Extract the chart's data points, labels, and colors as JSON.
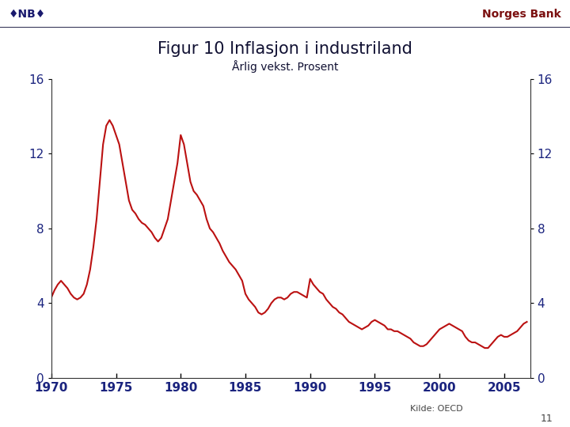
{
  "title": "Figur 10 Inflasjon i industriland",
  "subtitle": "Årlig vekst. Prosent",
  "source": "Kilde: OECD",
  "page_num": "11",
  "line_color": "#bb1111",
  "line_width": 1.5,
  "axis_label_color": "#1a237e",
  "title_color": "#111133",
  "subtitle_color": "#111133",
  "header_logo_color": "#1a1a6e",
  "header_norgesbank_color": "#7b1010",
  "ylim": [
    0,
    16
  ],
  "yticks": [
    0,
    4,
    8,
    12,
    16
  ],
  "xlim_min": 1970.0,
  "xlim_max": 2007.0,
  "xticks": [
    1970,
    1975,
    1980,
    1985,
    1990,
    1995,
    2000,
    2005
  ],
  "years": [
    1970.0,
    1970.25,
    1970.5,
    1970.75,
    1971.0,
    1971.25,
    1971.5,
    1971.75,
    1972.0,
    1972.25,
    1972.5,
    1972.75,
    1973.0,
    1973.25,
    1973.5,
    1973.75,
    1974.0,
    1974.25,
    1974.5,
    1974.75,
    1975.0,
    1975.25,
    1975.5,
    1975.75,
    1976.0,
    1976.25,
    1976.5,
    1976.75,
    1977.0,
    1977.25,
    1977.5,
    1977.75,
    1978.0,
    1978.25,
    1978.5,
    1978.75,
    1979.0,
    1979.25,
    1979.5,
    1979.75,
    1980.0,
    1980.25,
    1980.5,
    1980.75,
    1981.0,
    1981.25,
    1981.5,
    1981.75,
    1982.0,
    1982.25,
    1982.5,
    1982.75,
    1983.0,
    1983.25,
    1983.5,
    1983.75,
    1984.0,
    1984.25,
    1984.5,
    1984.75,
    1985.0,
    1985.25,
    1985.5,
    1985.75,
    1986.0,
    1986.25,
    1986.5,
    1986.75,
    1987.0,
    1987.25,
    1987.5,
    1987.75,
    1988.0,
    1988.25,
    1988.5,
    1988.75,
    1989.0,
    1989.25,
    1989.5,
    1989.75,
    1990.0,
    1990.25,
    1990.5,
    1990.75,
    1991.0,
    1991.25,
    1991.5,
    1991.75,
    1992.0,
    1992.25,
    1992.5,
    1992.75,
    1993.0,
    1993.25,
    1993.5,
    1993.75,
    1994.0,
    1994.25,
    1994.5,
    1994.75,
    1995.0,
    1995.25,
    1995.5,
    1995.75,
    1996.0,
    1996.25,
    1996.5,
    1996.75,
    1997.0,
    1997.25,
    1997.5,
    1997.75,
    1998.0,
    1998.25,
    1998.5,
    1998.75,
    1999.0,
    1999.25,
    1999.5,
    1999.75,
    2000.0,
    2000.25,
    2000.5,
    2000.75,
    2001.0,
    2001.25,
    2001.5,
    2001.75,
    2002.0,
    2002.25,
    2002.5,
    2002.75,
    2003.0,
    2003.25,
    2003.5,
    2003.75,
    2004.0,
    2004.25,
    2004.5,
    2004.75,
    2005.0,
    2005.25,
    2005.5,
    2005.75,
    2006.0,
    2006.25,
    2006.5,
    2006.75
  ],
  "values": [
    4.3,
    4.7,
    5.0,
    5.2,
    5.0,
    4.8,
    4.5,
    4.3,
    4.2,
    4.3,
    4.5,
    5.0,
    5.8,
    7.0,
    8.5,
    10.5,
    12.5,
    13.5,
    13.8,
    13.5,
    13.0,
    12.5,
    11.5,
    10.5,
    9.5,
    9.0,
    8.8,
    8.5,
    8.3,
    8.2,
    8.0,
    7.8,
    7.5,
    7.3,
    7.5,
    8.0,
    8.5,
    9.5,
    10.5,
    11.5,
    13.0,
    12.5,
    11.5,
    10.5,
    10.0,
    9.8,
    9.5,
    9.2,
    8.5,
    8.0,
    7.8,
    7.5,
    7.2,
    6.8,
    6.5,
    6.2,
    6.0,
    5.8,
    5.5,
    5.2,
    4.5,
    4.2,
    4.0,
    3.8,
    3.5,
    3.4,
    3.5,
    3.7,
    4.0,
    4.2,
    4.3,
    4.3,
    4.2,
    4.3,
    4.5,
    4.6,
    4.6,
    4.5,
    4.4,
    4.3,
    5.3,
    5.0,
    4.8,
    4.6,
    4.5,
    4.2,
    4.0,
    3.8,
    3.7,
    3.5,
    3.4,
    3.2,
    3.0,
    2.9,
    2.8,
    2.7,
    2.6,
    2.7,
    2.8,
    3.0,
    3.1,
    3.0,
    2.9,
    2.8,
    2.6,
    2.6,
    2.5,
    2.5,
    2.4,
    2.3,
    2.2,
    2.1,
    1.9,
    1.8,
    1.7,
    1.7,
    1.8,
    2.0,
    2.2,
    2.4,
    2.6,
    2.7,
    2.8,
    2.9,
    2.8,
    2.7,
    2.6,
    2.5,
    2.2,
    2.0,
    1.9,
    1.9,
    1.8,
    1.7,
    1.6,
    1.6,
    1.8,
    2.0,
    2.2,
    2.3,
    2.2,
    2.2,
    2.3,
    2.4,
    2.5,
    2.7,
    2.9,
    3.0
  ],
  "background_color": "#ffffff"
}
